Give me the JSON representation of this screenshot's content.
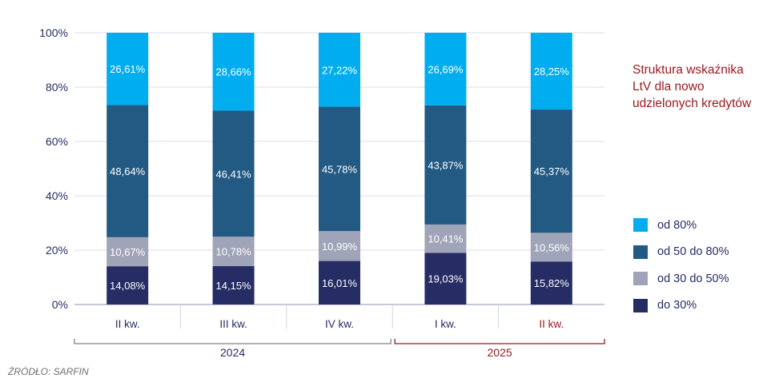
{
  "chart_data": {
    "type": "bar",
    "stacked": true,
    "title": "Struktura wskaźnika LtV dla nowo udzielonych kredytów",
    "categories": [
      "II kw.",
      "III kw.",
      "IV kw.",
      "I kw.",
      "II kw."
    ],
    "groups": [
      {
        "label": "2024",
        "count": 3,
        "color": "#808285"
      },
      {
        "label": "2025",
        "count": 2,
        "color": "#9b1b22"
      }
    ],
    "category_colors": [
      "#262d64",
      "#262d64",
      "#262d64",
      "#262d64",
      "#9b1b22"
    ],
    "series": [
      {
        "name": "do 30%",
        "color": "#262d64",
        "values": [
          14.08,
          14.15,
          16.01,
          19.03,
          15.82
        ],
        "labels": [
          "14,08%",
          "14,15%",
          "16,01%",
          "19,03%",
          "15,82%"
        ]
      },
      {
        "name": "od 30 do 50%",
        "color": "#a0a4b8",
        "values": [
          10.67,
          10.78,
          10.99,
          10.41,
          10.56
        ],
        "labels": [
          "10,67%",
          "10,78%",
          "10,99%",
          "10,41%",
          "10,56%"
        ]
      },
      {
        "name": "od 50 do 80%",
        "color": "#235a83",
        "values": [
          48.64,
          46.41,
          45.78,
          43.87,
          45.37
        ],
        "labels": [
          "48,64%",
          "46,41%",
          "45,78%",
          "43,87%",
          "45,37%"
        ]
      },
      {
        "name": "od 80%",
        "color": "#00aeef",
        "values": [
          26.61,
          28.66,
          27.22,
          26.69,
          28.25
        ],
        "labels": [
          "26,61%",
          "28,66%",
          "27,22%",
          "26,69%",
          "28,25%"
        ]
      }
    ],
    "ylim": [
      0,
      100
    ],
    "yticks": [
      "0%",
      "20%",
      "40%",
      "60%",
      "80%",
      "100%"
    ],
    "grid": true,
    "legend_position": "right"
  },
  "source": "ŹRÓDŁO: SARFIN"
}
